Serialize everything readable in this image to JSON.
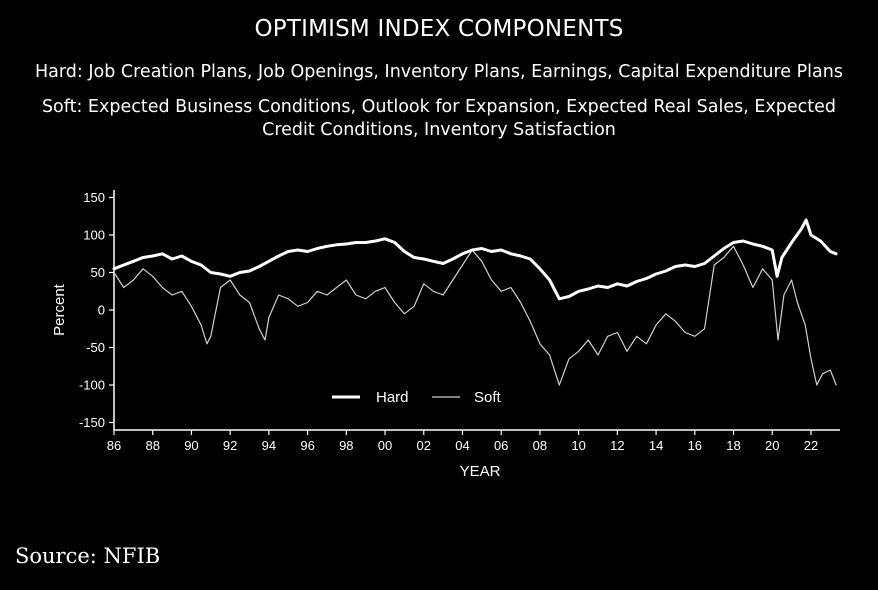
{
  "chart_data": {
    "type": "line",
    "title": "OPTIMISM INDEX COMPONENTS",
    "subtitle_hard": "Hard: Job Creation Plans, Job Openings, Inventory Plans, Earnings, Capital Expenditure Plans",
    "subtitle_soft": "Soft: Expected Business Conditions, Outlook for Expansion, Expected Real Sales, Expected Credit Conditions, Inventory Satisfaction",
    "xlabel": "YEAR",
    "ylabel": "Percent",
    "xlim": [
      1986,
      2023.5
    ],
    "ylim": [
      -160,
      160
    ],
    "x_ticks": [
      1986,
      1988,
      1990,
      1992,
      1994,
      1996,
      1998,
      2000,
      2002,
      2004,
      2006,
      2008,
      2010,
      2012,
      2014,
      2016,
      2018,
      2020,
      2022
    ],
    "x_tick_labels": [
      "86",
      "88",
      "90",
      "92",
      "94",
      "96",
      "98",
      "00",
      "02",
      "04",
      "06",
      "08",
      "10",
      "12",
      "14",
      "16",
      "18",
      "20",
      "22"
    ],
    "y_ticks": [
      150,
      100,
      50,
      0,
      -50,
      -100,
      -150
    ],
    "legend_position": "bottom-center",
    "grid": false,
    "series": [
      {
        "name": "Hard",
        "color": "#ffffff",
        "points": [
          [
            1986,
            55
          ],
          [
            1986.5,
            60
          ],
          [
            1987,
            65
          ],
          [
            1987.5,
            70
          ],
          [
            1988,
            72
          ],
          [
            1988.5,
            75
          ],
          [
            1989,
            68
          ],
          [
            1989.5,
            72
          ],
          [
            1990,
            65
          ],
          [
            1990.5,
            60
          ],
          [
            1991,
            50
          ],
          [
            1991.5,
            48
          ],
          [
            1992,
            45
          ],
          [
            1992.5,
            50
          ],
          [
            1993,
            52
          ],
          [
            1993.5,
            58
          ],
          [
            1994,
            65
          ],
          [
            1994.5,
            72
          ],
          [
            1995,
            78
          ],
          [
            1995.5,
            80
          ],
          [
            1996,
            78
          ],
          [
            1996.5,
            82
          ],
          [
            1997,
            85
          ],
          [
            1997.5,
            87
          ],
          [
            1998,
            88
          ],
          [
            1998.5,
            90
          ],
          [
            1999,
            90
          ],
          [
            1999.5,
            92
          ],
          [
            2000,
            95
          ],
          [
            2000.5,
            90
          ],
          [
            2001,
            78
          ],
          [
            2001.5,
            70
          ],
          [
            2002,
            68
          ],
          [
            2002.5,
            65
          ],
          [
            2003,
            62
          ],
          [
            2003.5,
            68
          ],
          [
            2004,
            75
          ],
          [
            2004.5,
            80
          ],
          [
            2005,
            82
          ],
          [
            2005.5,
            78
          ],
          [
            2006,
            80
          ],
          [
            2006.5,
            75
          ],
          [
            2007,
            72
          ],
          [
            2007.5,
            68
          ],
          [
            2008,
            55
          ],
          [
            2008.5,
            40
          ],
          [
            2009,
            15
          ],
          [
            2009.5,
            18
          ],
          [
            2010,
            25
          ],
          [
            2010.5,
            28
          ],
          [
            2011,
            32
          ],
          [
            2011.5,
            30
          ],
          [
            2012,
            35
          ],
          [
            2012.5,
            32
          ],
          [
            2013,
            38
          ],
          [
            2013.5,
            42
          ],
          [
            2014,
            48
          ],
          [
            2014.5,
            52
          ],
          [
            2015,
            58
          ],
          [
            2015.5,
            60
          ],
          [
            2016,
            58
          ],
          [
            2016.5,
            62
          ],
          [
            2017,
            72
          ],
          [
            2017.5,
            82
          ],
          [
            2018,
            90
          ],
          [
            2018.5,
            92
          ],
          [
            2019,
            88
          ],
          [
            2019.5,
            85
          ],
          [
            2020,
            80
          ],
          [
            2020.25,
            45
          ],
          [
            2020.5,
            70
          ],
          [
            2021,
            90
          ],
          [
            2021.5,
            108
          ],
          [
            2021.75,
            120
          ],
          [
            2022,
            100
          ],
          [
            2022.5,
            92
          ],
          [
            2023,
            78
          ],
          [
            2023.3,
            75
          ]
        ]
      },
      {
        "name": "Soft",
        "color": "#cfcfcf",
        "points": [
          [
            1986,
            50
          ],
          [
            1986.5,
            30
          ],
          [
            1987,
            40
          ],
          [
            1987.5,
            55
          ],
          [
            1988,
            45
          ],
          [
            1988.5,
            30
          ],
          [
            1989,
            20
          ],
          [
            1989.5,
            25
          ],
          [
            1990,
            5
          ],
          [
            1990.5,
            -20
          ],
          [
            1990.8,
            -45
          ],
          [
            1991,
            -35
          ],
          [
            1991.5,
            30
          ],
          [
            1992,
            40
          ],
          [
            1992.5,
            20
          ],
          [
            1993,
            10
          ],
          [
            1993.5,
            -25
          ],
          [
            1993.8,
            -40
          ],
          [
            1994,
            -10
          ],
          [
            1994.5,
            20
          ],
          [
            1995,
            15
          ],
          [
            1995.5,
            5
          ],
          [
            1996,
            10
          ],
          [
            1996.5,
            25
          ],
          [
            1997,
            20
          ],
          [
            1997.5,
            30
          ],
          [
            1998,
            40
          ],
          [
            1998.5,
            20
          ],
          [
            1999,
            15
          ],
          [
            1999.5,
            25
          ],
          [
            2000,
            30
          ],
          [
            2000.5,
            10
          ],
          [
            2001,
            -5
          ],
          [
            2001.5,
            5
          ],
          [
            2002,
            35
          ],
          [
            2002.5,
            25
          ],
          [
            2003,
            20
          ],
          [
            2003.5,
            40
          ],
          [
            2004,
            60
          ],
          [
            2004.5,
            80
          ],
          [
            2005,
            65
          ],
          [
            2005.5,
            40
          ],
          [
            2006,
            25
          ],
          [
            2006.5,
            30
          ],
          [
            2007,
            10
          ],
          [
            2007.5,
            -15
          ],
          [
            2008,
            -45
          ],
          [
            2008.5,
            -60
          ],
          [
            2009,
            -100
          ],
          [
            2009.5,
            -65
          ],
          [
            2010,
            -55
          ],
          [
            2010.5,
            -40
          ],
          [
            2011,
            -60
          ],
          [
            2011.5,
            -35
          ],
          [
            2012,
            -30
          ],
          [
            2012.5,
            -55
          ],
          [
            2013,
            -35
          ],
          [
            2013.5,
            -45
          ],
          [
            2014,
            -20
          ],
          [
            2014.5,
            -5
          ],
          [
            2015,
            -15
          ],
          [
            2015.5,
            -30
          ],
          [
            2016,
            -35
          ],
          [
            2016.5,
            -25
          ],
          [
            2017,
            60
          ],
          [
            2017.5,
            70
          ],
          [
            2018,
            85
          ],
          [
            2018.5,
            60
          ],
          [
            2019,
            30
          ],
          [
            2019.5,
            55
          ],
          [
            2020,
            40
          ],
          [
            2020.3,
            -40
          ],
          [
            2020.6,
            20
          ],
          [
            2021,
            40
          ],
          [
            2021.3,
            10
          ],
          [
            2021.7,
            -20
          ],
          [
            2022,
            -65
          ],
          [
            2022.3,
            -100
          ],
          [
            2022.6,
            -85
          ],
          [
            2023,
            -80
          ],
          [
            2023.3,
            -100
          ]
        ]
      }
    ]
  },
  "source": "Source: NFIB"
}
